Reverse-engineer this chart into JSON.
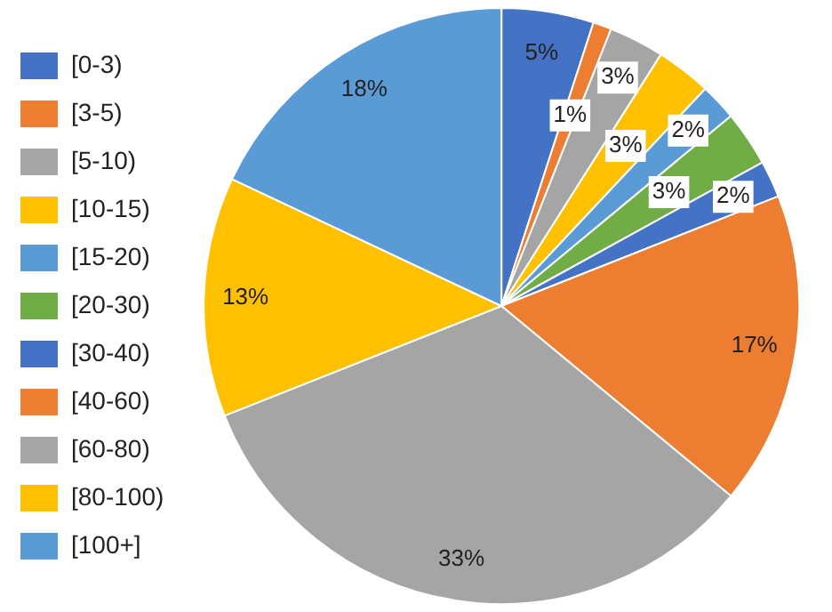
{
  "chart_data": {
    "type": "pie",
    "categories": [
      "[0-3)",
      "[3-5)",
      "[5-10)",
      "[10-15)",
      "[15-20)",
      "[20-30)",
      "[30-40)",
      "[40-60)",
      "[60-80)",
      "[80-100)",
      "[100+]"
    ],
    "values": [
      5,
      1,
      3,
      3,
      2,
      3,
      2,
      17,
      33,
      13,
      18
    ],
    "colors": [
      "#4472c4",
      "#ed7d31",
      "#a5a5a5",
      "#ffc000",
      "#5b9bd5",
      "#70ad47",
      "#4472c4",
      "#ed7d31",
      "#a5a5a5",
      "#ffc000",
      "#5b9bd5"
    ],
    "value_labels": [
      "5%",
      "1%",
      "3%",
      "3%",
      "2%",
      "3%",
      "2%",
      "17%",
      "33%",
      "13%",
      "18%"
    ],
    "legend": "left"
  }
}
